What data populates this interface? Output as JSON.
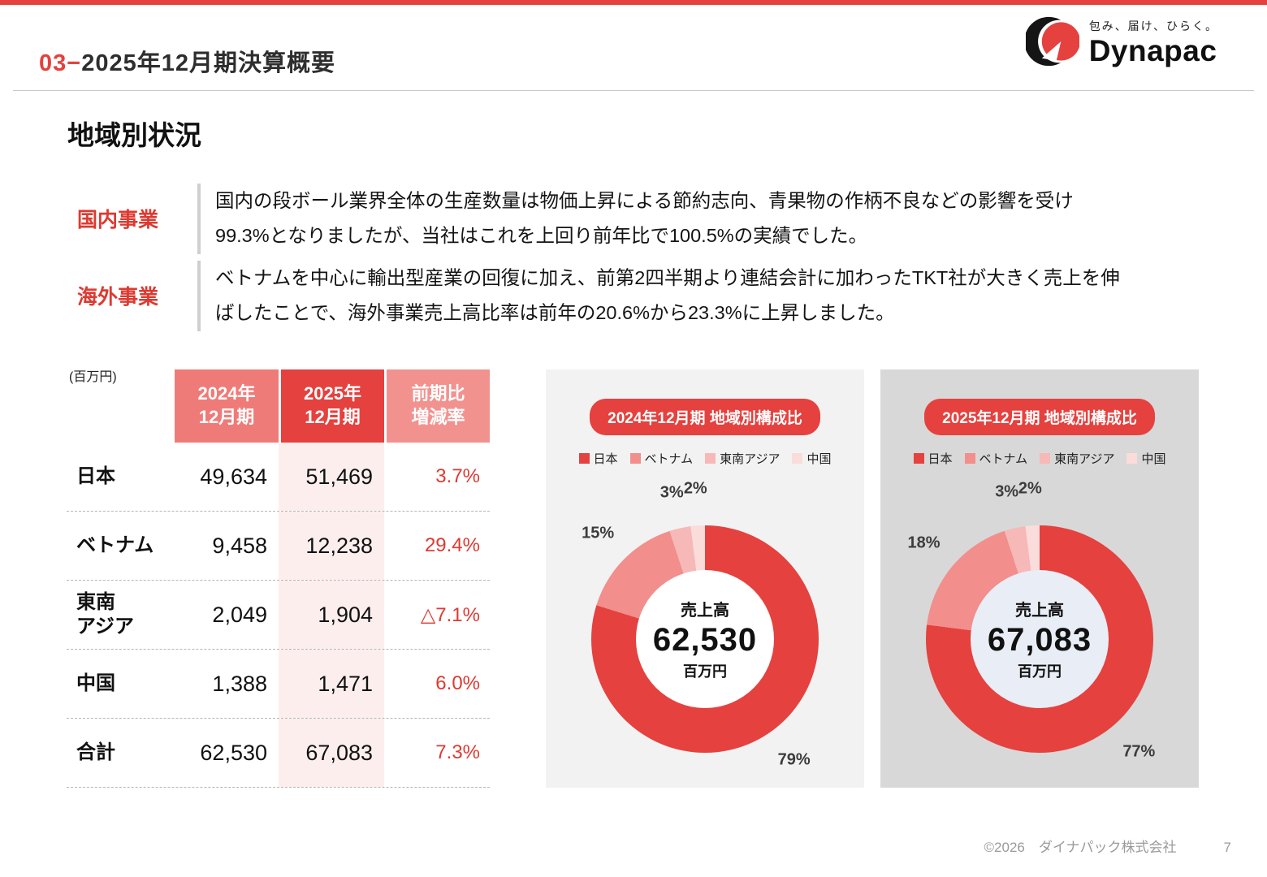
{
  "header": {
    "section_no": "03",
    "separator": "−",
    "title": "2025年12月期決算概要",
    "logo": {
      "tagline": "包み、届け、ひらく。",
      "brand": "Dynapac"
    }
  },
  "page_title": "地域別状況",
  "summaries": [
    {
      "label": "国内事業",
      "text": "国内の段ボール業界全体の生産数量は物価上昇による節約志向、青果物の作柄不良などの影響を受け\n99.3%となりましたが、当社はこれを上回り前年比で100.5%の実績でした。"
    },
    {
      "label": "海外事業",
      "text": "ベトナムを中心に輸出型産業の回復に加え、前第2四半期より連結会計に加わったTKT社が大きく売上を伸\nばしたことで、海外事業売上高比率は前年の20.6%から23.3%に上昇しました。"
    }
  ],
  "table": {
    "unit": "(百万円)",
    "columns": [
      "2024年\n12月期",
      "2025年\n12月期",
      "前期比\n増減率"
    ],
    "rows": [
      {
        "label": "日本",
        "y2024": "49,634",
        "y2025": "51,469",
        "change": "3.7%"
      },
      {
        "label": "ベトナム",
        "y2024": "9,458",
        "y2025": "12,238",
        "change": "29.4%"
      },
      {
        "label": "東南\nアジア",
        "y2024": "2,049",
        "y2025": "1,904",
        "change": "△7.1%"
      },
      {
        "label": "中国",
        "y2024": "1,388",
        "y2025": "1,471",
        "change": "6.0%"
      },
      {
        "label": "合計",
        "y2024": "62,530",
        "y2025": "67,083",
        "change": "7.3%"
      }
    ]
  },
  "chart_data": [
    {
      "type": "pie",
      "title": "2024年12月期 地域別構成比",
      "categories": [
        "日本",
        "ベトナム",
        "東南アジア",
        "中国"
      ],
      "values": [
        79,
        15,
        3,
        2
      ],
      "labels": [
        "79%",
        "15%",
        "3%",
        "2%"
      ],
      "colors": [
        "#e5413e",
        "#f28e8c",
        "#f6b9b7",
        "#fadcdb"
      ],
      "center": {
        "label": "売上高",
        "value": "62,530",
        "unit": "百万円"
      },
      "legend_position": "top",
      "start_angle_deg": 0
    },
    {
      "type": "pie",
      "title": "2025年12月期 地域別構成比",
      "categories": [
        "日本",
        "ベトナム",
        "東南アジア",
        "中国"
      ],
      "values": [
        77,
        18,
        3,
        2
      ],
      "labels": [
        "77%",
        "18%",
        "3%",
        "2%"
      ],
      "colors": [
        "#e5413e",
        "#f28e8c",
        "#f6b9b7",
        "#fadcdb"
      ],
      "center": {
        "label": "売上高",
        "value": "67,083",
        "unit": "百万円"
      },
      "legend_position": "top",
      "start_angle_deg": 0
    }
  ],
  "footer": {
    "copyright": "©2026　ダイナパック株式会社",
    "page_number": "7"
  }
}
